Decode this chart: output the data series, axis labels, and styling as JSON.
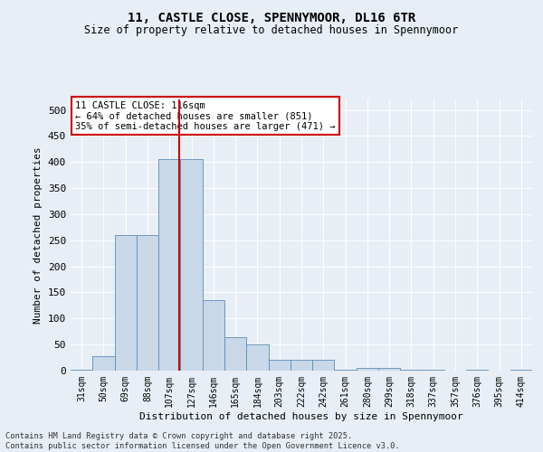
{
  "title": "11, CASTLE CLOSE, SPENNYMOOR, DL16 6TR",
  "subtitle": "Size of property relative to detached houses in Spennymoor",
  "xlabel": "Distribution of detached houses by size in Spennymoor",
  "ylabel": "Number of detached properties",
  "bar_color": "#c8d8e8",
  "bar_edge_color": "#5b8db8",
  "bg_color": "#e8eef5",
  "grid_color": "#ffffff",
  "vline_color": "#cc0000",
  "annotation_text": "11 CASTLE CLOSE: 116sqm\n← 64% of detached houses are smaller (851)\n35% of semi-detached houses are larger (471) →",
  "annotation_box_color": "white",
  "annotation_box_edge": "#cc0000",
  "footnote": "Contains HM Land Registry data © Crown copyright and database right 2025.\nContains public sector information licensed under the Open Government Licence v3.0.",
  "bin_labels": [
    "31sqm",
    "50sqm",
    "69sqm",
    "88sqm",
    "107sqm",
    "127sqm",
    "146sqm",
    "165sqm",
    "184sqm",
    "203sqm",
    "222sqm",
    "242sqm",
    "261sqm",
    "280sqm",
    "299sqm",
    "318sqm",
    "337sqm",
    "357sqm",
    "376sqm",
    "395sqm",
    "414sqm"
  ],
  "bar_heights": [
    2,
    28,
    260,
    260,
    405,
    405,
    135,
    65,
    50,
    20,
    20,
    20,
    1,
    5,
    5,
    1,
    1,
    0,
    1,
    0,
    1
  ],
  "ylim": [
    0,
    520
  ],
  "yticks": [
    0,
    50,
    100,
    150,
    200,
    250,
    300,
    350,
    400,
    450,
    500
  ],
  "vline_bin_index": 4.45
}
